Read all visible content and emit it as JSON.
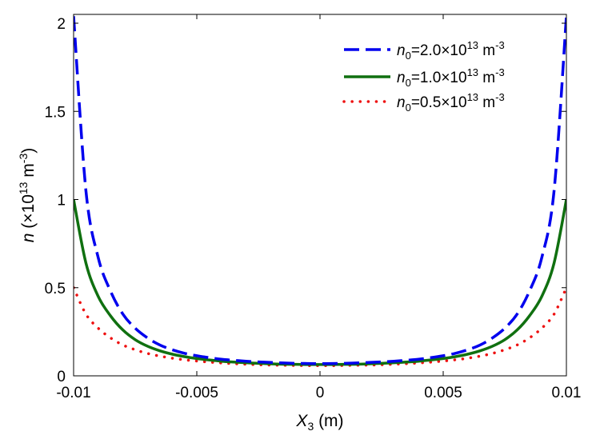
{
  "chart_data": {
    "type": "line",
    "xlabel": {
      "var": "X",
      "sub": "3",
      "unit": " (m)"
    },
    "ylabel": {
      "var": "n",
      "unit_pre": " (×10",
      "unit_sup": "13",
      "unit_mid": " m",
      "unit_sup2": "-3",
      "unit_post": ")"
    },
    "xlim": [
      -0.01,
      0.01
    ],
    "ylim": [
      0,
      2.05
    ],
    "xticks": [
      -0.01,
      -0.005,
      0,
      0.005,
      0.01
    ],
    "xtick_labels": [
      "-0.01",
      "-0.005",
      "0",
      "0.005",
      "0.01"
    ],
    "yticks": [
      0,
      0.5,
      1,
      1.5,
      2
    ],
    "ytick_labels": [
      "0",
      "0.5",
      "1",
      "1.5",
      "2"
    ],
    "grid": false,
    "legend_position": "top-right",
    "series": [
      {
        "name": {
          "var": "n",
          "sub": "0",
          "value": "=2.0×10",
          "sup": "13",
          "unit": " m",
          "unit_sup": "-3"
        },
        "color": "#0000ee",
        "style": "dashed",
        "x": [
          -0.01,
          -0.0095,
          -0.009,
          -0.0085,
          -0.008,
          -0.0075,
          -0.007,
          -0.0065,
          -0.006,
          -0.0055,
          -0.005,
          -0.0045,
          -0.004,
          -0.0035,
          -0.003,
          -0.0025,
          -0.002,
          -0.0015,
          -0.001,
          -0.0005,
          0,
          0.0005,
          0.001,
          0.0015,
          0.002,
          0.0025,
          0.003,
          0.0035,
          0.004,
          0.0045,
          0.005,
          0.0055,
          0.006,
          0.0065,
          0.007,
          0.0075,
          0.008,
          0.0085,
          0.009,
          0.0095,
          0.01
        ],
        "y": [
          2.04,
          1.05,
          0.67,
          0.48,
          0.35,
          0.27,
          0.215,
          0.175,
          0.148,
          0.128,
          0.114,
          0.103,
          0.094,
          0.088,
          0.083,
          0.079,
          0.076,
          0.073,
          0.071,
          0.07,
          0.069,
          0.07,
          0.071,
          0.073,
          0.076,
          0.079,
          0.083,
          0.088,
          0.094,
          0.103,
          0.114,
          0.128,
          0.148,
          0.175,
          0.215,
          0.27,
          0.35,
          0.48,
          0.67,
          1.05,
          2.04
        ]
      },
      {
        "name": {
          "var": "n",
          "sub": "0",
          "value": "=1.0×10",
          "sup": "13",
          "unit": " m",
          "unit_sup": "-3"
        },
        "color": "#107010",
        "style": "solid",
        "x": [
          -0.01,
          -0.0095,
          -0.009,
          -0.0085,
          -0.008,
          -0.0075,
          -0.007,
          -0.0065,
          -0.006,
          -0.0055,
          -0.005,
          -0.0045,
          -0.004,
          -0.0035,
          -0.003,
          -0.0025,
          -0.002,
          -0.0015,
          -0.001,
          -0.0005,
          0,
          0.0005,
          0.001,
          0.0015,
          0.002,
          0.0025,
          0.003,
          0.0035,
          0.004,
          0.0045,
          0.005,
          0.0055,
          0.006,
          0.0065,
          0.007,
          0.0075,
          0.008,
          0.0085,
          0.009,
          0.0095,
          0.01
        ],
        "y": [
          1.0,
          0.64,
          0.45,
          0.34,
          0.26,
          0.205,
          0.168,
          0.142,
          0.123,
          0.109,
          0.098,
          0.09,
          0.083,
          0.078,
          0.074,
          0.071,
          0.068,
          0.066,
          0.065,
          0.064,
          0.064,
          0.064,
          0.065,
          0.066,
          0.068,
          0.071,
          0.074,
          0.078,
          0.083,
          0.09,
          0.098,
          0.109,
          0.123,
          0.142,
          0.168,
          0.205,
          0.26,
          0.34,
          0.45,
          0.64,
          1.0
        ]
      },
      {
        "name": {
          "var": "n",
          "sub": "0",
          "value": "=0.5×10",
          "sup": "13",
          "unit": " m",
          "unit_sup": "-3"
        },
        "color": "#ee1111",
        "style": "dotted",
        "x": [
          -0.01,
          -0.0095,
          -0.009,
          -0.0085,
          -0.008,
          -0.0075,
          -0.007,
          -0.0065,
          -0.006,
          -0.0055,
          -0.005,
          -0.0045,
          -0.004,
          -0.0035,
          -0.003,
          -0.0025,
          -0.002,
          -0.0015,
          -0.001,
          -0.0005,
          0,
          0.0005,
          0.001,
          0.0015,
          0.002,
          0.0025,
          0.003,
          0.0035,
          0.004,
          0.0045,
          0.005,
          0.0055,
          0.006,
          0.0065,
          0.007,
          0.0075,
          0.008,
          0.0085,
          0.009,
          0.0095,
          0.01
        ],
        "y": [
          0.5,
          0.35,
          0.27,
          0.215,
          0.175,
          0.148,
          0.127,
          0.112,
          0.1,
          0.091,
          0.084,
          0.078,
          0.073,
          0.069,
          0.066,
          0.063,
          0.061,
          0.06,
          0.059,
          0.058,
          0.058,
          0.058,
          0.059,
          0.06,
          0.061,
          0.063,
          0.066,
          0.069,
          0.073,
          0.078,
          0.084,
          0.091,
          0.1,
          0.112,
          0.127,
          0.148,
          0.175,
          0.215,
          0.27,
          0.35,
          0.5
        ]
      }
    ]
  }
}
